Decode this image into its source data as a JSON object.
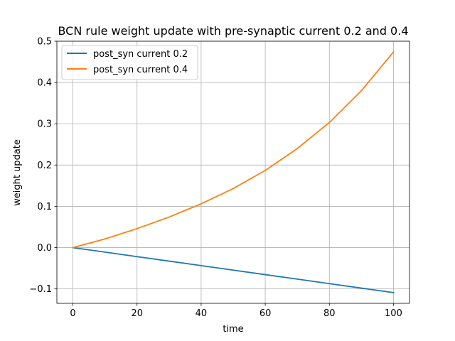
{
  "chart_data": {
    "type": "line",
    "title": "BCN rule weight update with pre-synaptic current 0.2 and 0.4",
    "xlabel": "time",
    "ylabel": "weight update",
    "xlim": [
      -5,
      105
    ],
    "ylim": [
      -0.135,
      0.5
    ],
    "xticks": [
      0,
      20,
      40,
      60,
      80,
      100
    ],
    "yticks": [
      -0.1,
      0.0,
      0.1,
      0.2,
      0.3,
      0.4,
      0.5
    ],
    "xtick_labels": [
      "0",
      "20",
      "40",
      "60",
      "80",
      "100"
    ],
    "ytick_labels": [
      "−0.1",
      "0.0",
      "0.1",
      "0.2",
      "0.3",
      "0.4",
      "0.5"
    ],
    "grid": true,
    "legend_position": "top-left",
    "series": [
      {
        "name": "post_syn current 0.2",
        "color": "#1f77b4",
        "x": [
          0,
          10,
          20,
          30,
          40,
          50,
          60,
          70,
          80,
          90,
          100
        ],
        "y": [
          0.0,
          -0.0109,
          -0.0218,
          -0.0327,
          -0.0436,
          -0.0545,
          -0.0654,
          -0.0763,
          -0.0872,
          -0.0981,
          -0.109
        ]
      },
      {
        "name": "post_syn current 0.4",
        "color": "#ff7f0e",
        "x": [
          0,
          10,
          20,
          30,
          40,
          50,
          60,
          70,
          80,
          90,
          100
        ],
        "y": [
          0.0,
          0.021,
          0.046,
          0.074,
          0.106,
          0.143,
          0.187,
          0.24,
          0.303,
          0.38,
          0.474
        ]
      }
    ]
  }
}
